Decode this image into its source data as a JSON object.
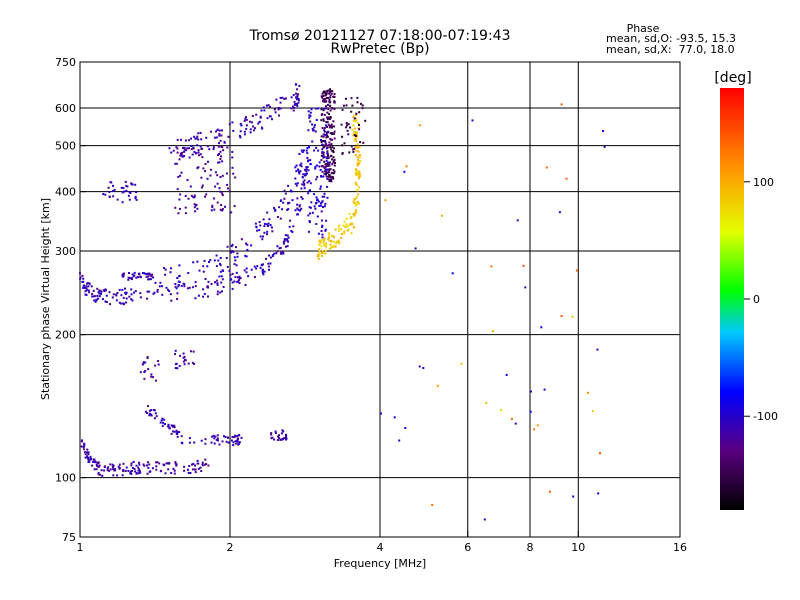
{
  "chart_data": {
    "type": "scatter",
    "title": "Tromsø 20121127 07:18:00-07:19:43",
    "subtitle": "RwPretec (Bp)",
    "xlabel": "Frequency [MHz]",
    "ylabel": "Stationary phase Virtual Height [km]",
    "x_scale": "log",
    "y_scale": "log",
    "xlim": [
      1,
      16
    ],
    "ylim": [
      75,
      750
    ],
    "x_ticks": [
      1,
      2,
      4,
      6,
      8,
      10,
      16
    ],
    "x_tick_labels": [
      "1",
      "2",
      "4",
      "6",
      "8",
      "10",
      "16"
    ],
    "y_ticks": [
      75,
      100,
      200,
      300,
      400,
      500,
      600,
      750
    ],
    "y_tick_labels": [
      "75",
      "100",
      "200",
      "300",
      "400",
      "500",
      "600",
      "750"
    ],
    "grid": true,
    "stats": {
      "heading": "Phase",
      "line_O": "mean, sd,O: -93.5, 15.3",
      "line_X": "mean, sd,X:  77.0, 18.0"
    },
    "colorbar": {
      "label": "[deg]",
      "min": -180,
      "max": 180,
      "ticks": [
        100,
        0,
        -100
      ],
      "tick_labels": [
        "100",
        "0",
        "-100"
      ]
    },
    "series": [
      {
        "type": "curve",
        "x": [
          1.0,
          1.02,
          1.05,
          1.1,
          1.2,
          1.3,
          1.5,
          1.7,
          1.9,
          2.1,
          2.3,
          2.5,
          2.6,
          2.7,
          2.8,
          2.85
        ],
        "y": [
          270,
          255,
          245,
          240,
          240,
          242,
          245,
          248,
          253,
          262,
          275,
          295,
          315,
          350,
          400,
          460
        ],
        "phase": -110,
        "spread": 8,
        "count": 240
      },
      {
        "type": "curve",
        "x": [
          1.3,
          1.5,
          1.7,
          1.9,
          2.1,
          2.3,
          2.5,
          2.7,
          2.8
        ],
        "y": [
          255,
          262,
          270,
          280,
          300,
          330,
          360,
          410,
          480
        ],
        "phase": -105,
        "spread": 12,
        "count": 140
      },
      {
        "type": "curve",
        "x": [
          1.5,
          1.7,
          1.9,
          2.1,
          2.3,
          2.5,
          2.7,
          2.75
        ],
        "y": [
          490,
          505,
          520,
          545,
          570,
          600,
          630,
          655
        ],
        "phase": -110,
        "spread": 10,
        "count": 130
      },
      {
        "type": "cloud",
        "xr": [
          1.55,
          2.05
        ],
        "yr": [
          360,
          500
        ],
        "phase": -120,
        "count": 110
      },
      {
        "type": "cloud",
        "xr": [
          1.1,
          1.3
        ],
        "yr": [
          380,
          420
        ],
        "phase": -110,
        "count": 35
      },
      {
        "type": "cloud",
        "xr": [
          1.2,
          1.4
        ],
        "yr": [
          260,
          270
        ],
        "phase": -110,
        "count": 40
      },
      {
        "type": "cloud",
        "xr": [
          3.05,
          3.25
        ],
        "yr": [
          420,
          660
        ],
        "phase": -145,
        "count": 200
      },
      {
        "type": "cloud",
        "xr": [
          2.85,
          3.15
        ],
        "yr": [
          320,
          600
        ],
        "phase": -100,
        "count": 120
      },
      {
        "type": "curve",
        "x": [
          3.0,
          3.1,
          3.3,
          3.5,
          3.6,
          3.62,
          3.6,
          3.55
        ],
        "y": [
          300,
          310,
          320,
          345,
          390,
          450,
          510,
          570
        ],
        "phase": 85,
        "spread": 10,
        "count": 180
      },
      {
        "type": "cloud",
        "xr": [
          3.35,
          3.75
        ],
        "yr": [
          480,
          640
        ],
        "phase": -150,
        "count": 40
      },
      {
        "type": "curve",
        "x": [
          1.0,
          1.05,
          1.1,
          1.2,
          1.3,
          1.4,
          1.6,
          1.8
        ],
        "y": [
          120,
          108,
          104,
          104,
          105,
          105,
          105,
          106
        ],
        "phase": -115,
        "spread": 6,
        "count": 160
      },
      {
        "type": "curve",
        "x": [
          1.35,
          1.5,
          1.6,
          1.8,
          2.0,
          2.1
        ],
        "y": [
          140,
          130,
          120,
          120,
          120,
          120
        ],
        "phase": -110,
        "spread": 5,
        "count": 90
      },
      {
        "type": "cloud",
        "xr": [
          1.3,
          1.45
        ],
        "yr": [
          160,
          180
        ],
        "phase": -115,
        "count": 18
      },
      {
        "type": "cloud",
        "xr": [
          1.55,
          1.7
        ],
        "yr": [
          168,
          185
        ],
        "phase": -115,
        "count": 20
      },
      {
        "type": "cloud",
        "xr": [
          2.4,
          2.6
        ],
        "yr": [
          120,
          126
        ],
        "phase": -110,
        "count": 25
      },
      {
        "type": "cloud",
        "xr": [
          4.0,
          12.0
        ],
        "yr": [
          80,
          650
        ],
        "phase": 120,
        "count": 50,
        "mixed": true
      }
    ]
  }
}
